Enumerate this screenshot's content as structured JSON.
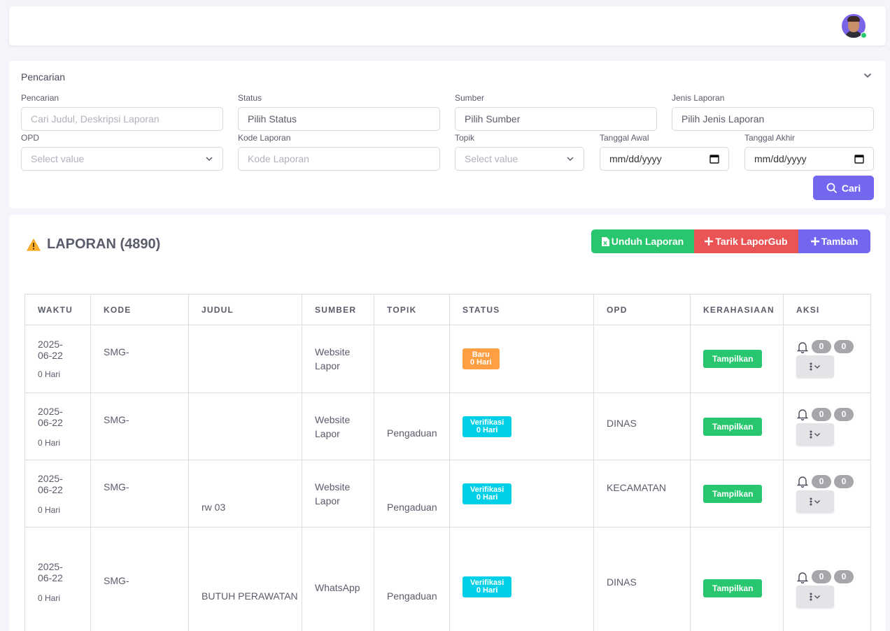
{
  "filter": {
    "title": "Pencarian",
    "pencarian_label": "Pencarian",
    "pencarian_placeholder": "Cari Judul, Deskripsi Laporan",
    "status_label": "Status",
    "status_value": "Pilih Status",
    "sumber_label": "Sumber",
    "sumber_value": "Pilih Sumber",
    "jenis_label": "Jenis Laporan",
    "jenis_value": "Pilih Jenis Laporan",
    "opd_label": "OPD",
    "opd_placeholder": "Select value",
    "kode_label": "Kode Laporan",
    "kode_placeholder": "Kode Laporan",
    "topik_label": "Topik",
    "topik_placeholder": "Select value",
    "tgl_awal_label": "Tanggal Awal",
    "tgl_awal_value": "mm/dd/yyyy",
    "tgl_akhir_label": "Tanggal Akhir",
    "tgl_akhir_value": "mm/dd/yyyy",
    "cari_label": "Cari"
  },
  "laporan": {
    "title": "LAPORAN (4890)",
    "unduh_label": "Unduh Laporan",
    "tarik_label": "Tarik LaporGub",
    "tambah_label": "Tambah"
  },
  "table": {
    "headers": [
      "WAKTU",
      "KODE",
      "JUDUL",
      "SUMBER",
      "TOPIK",
      "STATUS",
      "OPD",
      "KERAHASIAAN",
      "AKSI"
    ],
    "rows": [
      {
        "date1": "2025-",
        "date2": "06-22",
        "age": "0 Hari",
        "kode": "SMG-",
        "judul": "",
        "sumber": "Website Lapor",
        "topik": "",
        "status1": "Baru",
        "status2": "0 Hari",
        "status_type": "baru",
        "opd": "",
        "rahasia": "Tampilkan",
        "notif": "0",
        "count": "0"
      },
      {
        "date1": "2025-",
        "date2": "06-22",
        "age": "0 Hari",
        "kode": "SMG-",
        "judul": "",
        "sumber": "Website Lapor",
        "topik": "Pengaduan",
        "status1": "Verifikasi",
        "status2": "0 Hari",
        "status_type": "verif",
        "opd": "DINAS",
        "rahasia": "Tampilkan",
        "notif": "0",
        "count": "0"
      },
      {
        "date1": "2025-",
        "date2": "06-22",
        "age": "0 Hari",
        "kode": "SMG-",
        "judul": "rw 03",
        "sumber": "Website Lapor",
        "topik": "Pengaduan",
        "status1": "Verifikasi",
        "status2": "0 Hari",
        "status_type": "verif",
        "opd": "KECAMATAN",
        "rahasia": "Tampilkan",
        "notif": "0",
        "count": "0"
      },
      {
        "date1": "2025-",
        "date2": "06-22",
        "age": "0 Hari",
        "kode": "SMG-",
        "judul": "BUTUH PERAWATAN",
        "sumber": "WhatsApp",
        "topik": "Pengaduan",
        "status1": "Verifikasi",
        "status2": "0 Hari",
        "status_type": "verif",
        "opd": "DINAS",
        "rahasia": "Tampilkan",
        "notif": "0",
        "count": "0"
      }
    ]
  },
  "colors": {
    "primary": "#7367f0",
    "success": "#28c76f",
    "danger": "#ea5455",
    "warning": "#ff9f43",
    "info": "#00cfe8"
  }
}
